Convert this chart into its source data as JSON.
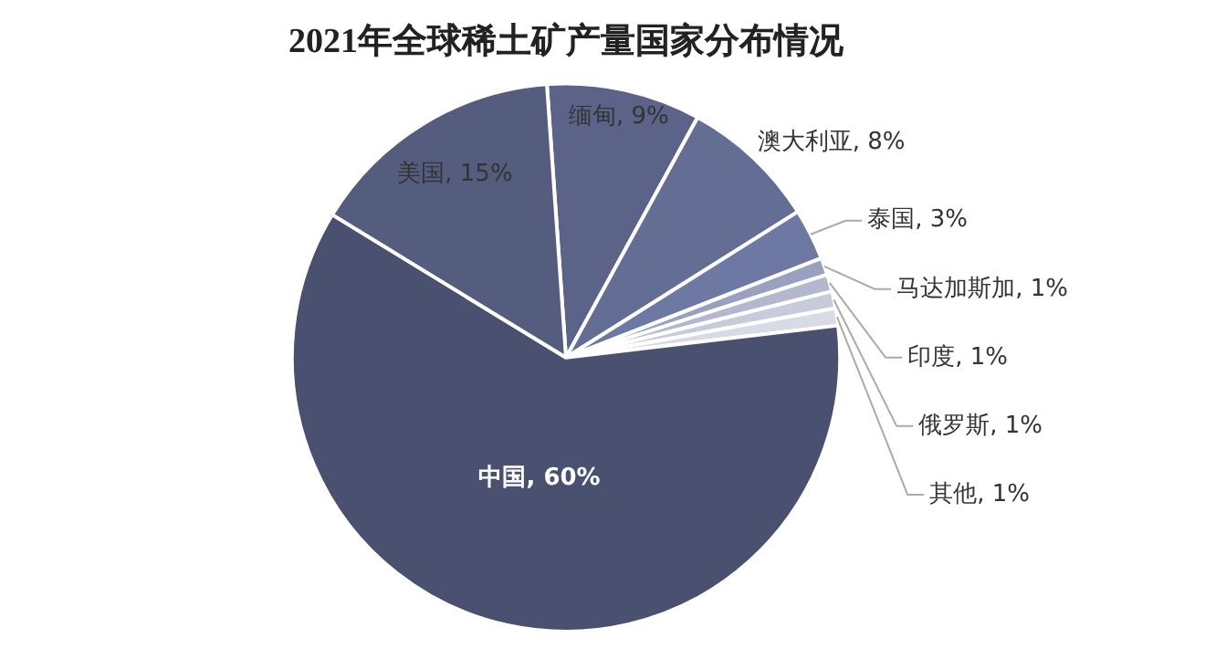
{
  "chart_data": {
    "type": "pie",
    "title": "2021年全球稀土矿产量国家分布情况",
    "categories": [
      "缅甸",
      "澳大利亚",
      "泰国",
      "马达加斯加",
      "印度",
      "俄罗斯",
      "其他",
      "中国",
      "美国"
    ],
    "values": [
      9,
      8,
      3,
      1,
      1,
      1,
      1,
      60,
      15
    ],
    "value_labels": [
      "9%",
      "8%",
      "3%",
      "1%",
      "1%",
      "1%",
      "1%",
      "60%",
      "15%"
    ],
    "colors": [
      "#5b6488",
      "#646d94",
      "#6d78a3",
      "#9aa0bf",
      "#b4b8cf",
      "#c8cbdb",
      "#d8dae5",
      "#4a5170",
      "#555d7e"
    ],
    "legend": false
  }
}
